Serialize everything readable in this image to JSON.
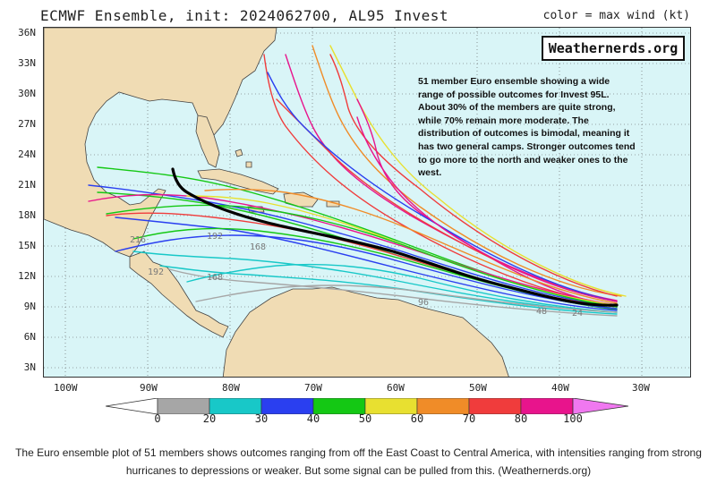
{
  "figure": {
    "title_left": "ECMWF Ensemble, init: 2024062700, AL95 Invest",
    "title_right": "color = max wind (kt)",
    "brand": "Weathernerds.org",
    "annotation": "51 member Euro ensemble showing a wide range of possible outcomes for Invest 95L. About 30% of the members are quite strong, while 70% remain more moderate. The distribution of outcomes is bimodal, meaning it has two general camps. Stronger outcomes tend to go more to the north and weaker ones to the west.",
    "lat_labels": [
      "36N",
      "33N",
      "30N",
      "27N",
      "24N",
      "21N",
      "18N",
      "15N",
      "12N",
      "9N",
      "6N",
      "3N"
    ],
    "lon_labels": [
      "100W",
      "90W",
      "80W",
      "70W",
      "60W",
      "50W",
      "40W",
      "30W"
    ],
    "track_labels": [
      "216",
      "192",
      "192",
      "168",
      "168",
      "96",
      "48",
      "24"
    ],
    "colorbar": {
      "ticks": [
        "0",
        "20",
        "30",
        "40",
        "50",
        "60",
        "70",
        "80",
        "100"
      ],
      "colors": [
        "#a6a6a6",
        "#18c8c8",
        "#2a3ff0",
        "#14c814",
        "#e8e030",
        "#f08c28",
        "#f03c3c",
        "#e8148c",
        "#f078f0"
      ]
    },
    "track_colors": {
      "ensemble_mean": "#000000",
      "gray": "#a6a6a6",
      "cyan": "#18c8c8",
      "blue": "#2a3ff0",
      "green": "#14c814",
      "yellow": "#e8e030",
      "orange": "#f08c28",
      "red": "#f03c3c",
      "magenta": "#e8148c",
      "pink": "#f078f0"
    },
    "land_color": "#f0dcb4",
    "ocean_color": "#d9f5f7"
  },
  "caption": "The Euro ensemble plot of 51 members shows outcomes ranging from off the East Coast to Central America, with intensities ranging from strong hurricanes to depressions or weaker. But some signal can be pulled from this. (Weathernerds.org)"
}
